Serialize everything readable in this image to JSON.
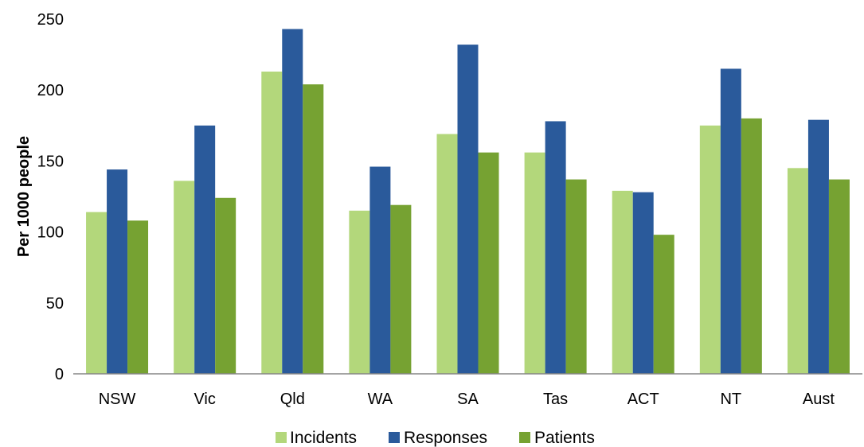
{
  "chart_data": {
    "type": "bar",
    "title": "",
    "xlabel": "",
    "ylabel": "Per 1000 people",
    "ylim": [
      0,
      250
    ],
    "yticks": [
      "0",
      "50",
      "100",
      "150",
      "200",
      "250"
    ],
    "grid": false,
    "legend_position": "bottom",
    "categories": [
      "NSW",
      "Vic",
      "Qld",
      "WA",
      "SA",
      "Tas",
      "ACT",
      "NT",
      "Aust"
    ],
    "series": [
      {
        "name": "Incidents",
        "color": "#b3d77b",
        "values": [
          114,
          136,
          213,
          115,
          169,
          156,
          129,
          175,
          145
        ]
      },
      {
        "name": "Responses",
        "color": "#2a5a9b",
        "values": [
          144,
          175,
          243,
          146,
          232,
          178,
          128,
          215,
          179
        ]
      },
      {
        "name": "Patients",
        "color": "#76a232",
        "values": [
          108,
          124,
          204,
          119,
          156,
          137,
          98,
          180,
          137
        ]
      }
    ]
  }
}
